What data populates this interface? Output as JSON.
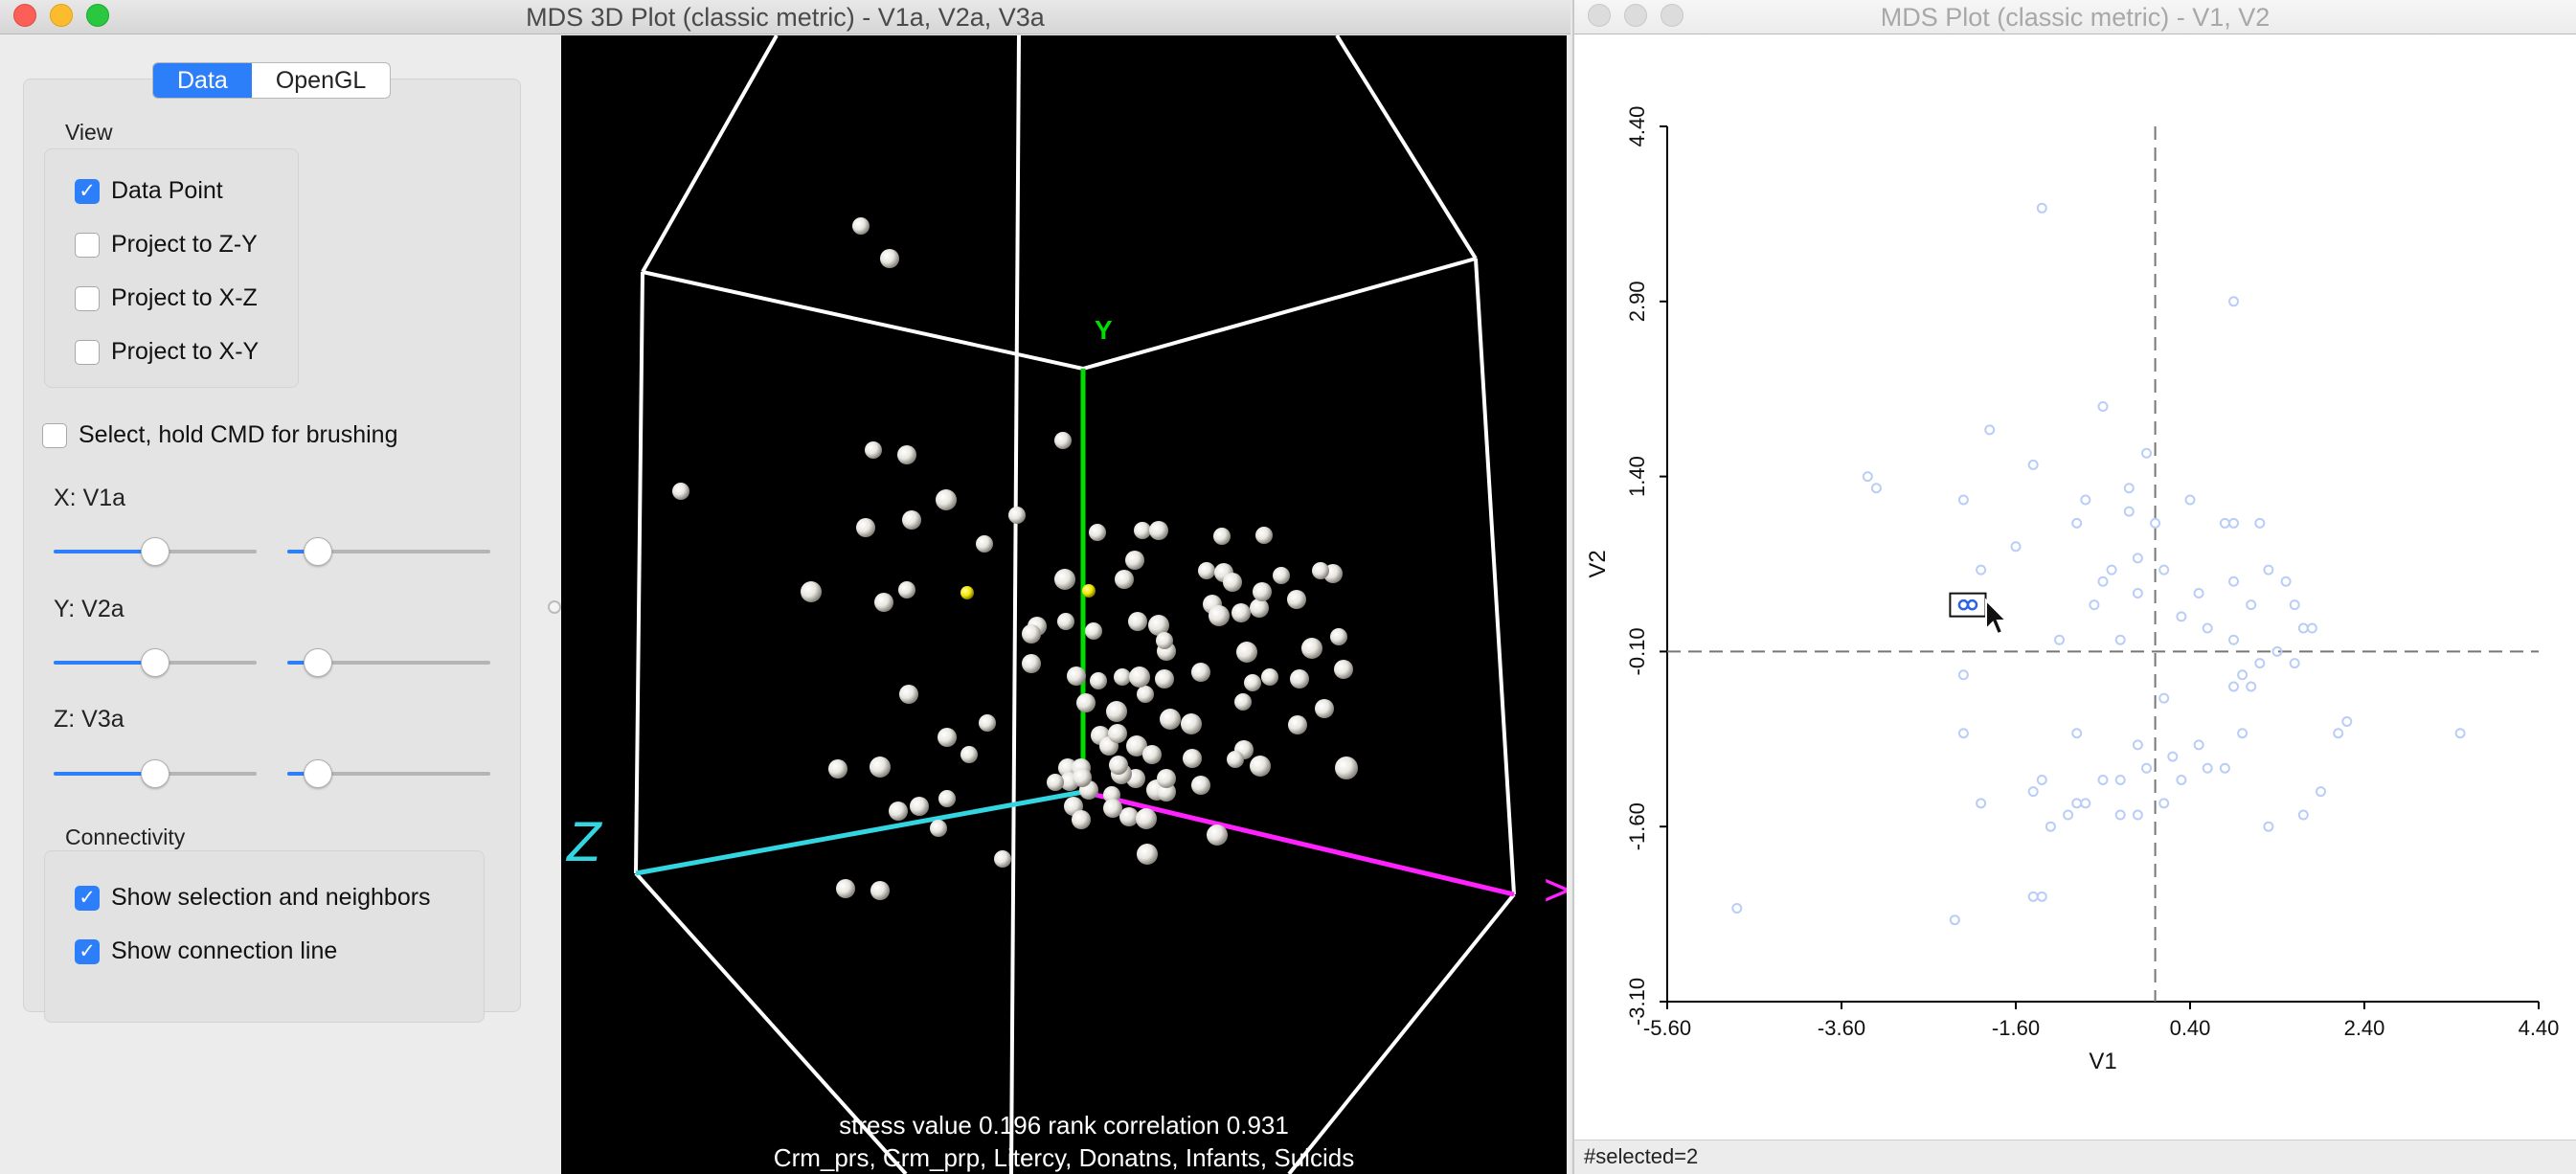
{
  "left_window": {
    "title": "MDS 3D Plot (classic metric) - V1a, V2a, V3a",
    "tabs": [
      {
        "label": "Data",
        "active": true
      },
      {
        "label": "OpenGL",
        "active": false
      }
    ],
    "view_group": {
      "title": "View",
      "options": [
        {
          "label": "Data Point",
          "checked": true
        },
        {
          "label": "Project to Z-Y",
          "checked": false
        },
        {
          "label": "Project to X-Z",
          "checked": false
        },
        {
          "label": "Project to X-Y",
          "checked": false
        }
      ]
    },
    "select_brushing": {
      "label": "Select, hold CMD for brushing",
      "checked": false
    },
    "axes_sliders": [
      {
        "label": "X: V1a",
        "slider1": 0.5,
        "slider2": 0.15
      },
      {
        "label": "Y: V2a",
        "slider1": 0.5,
        "slider2": 0.15
      },
      {
        "label": "Z: V3a",
        "slider1": 0.5,
        "slider2": 0.15
      }
    ],
    "connectivity_group": {
      "title": "Connectivity",
      "options": [
        {
          "label": "Show selection and neighbors",
          "checked": true
        },
        {
          "label": "Show connection line",
          "checked": true
        }
      ]
    },
    "gl": {
      "axis_labels": {
        "y": "Y",
        "z": "Z",
        "x": ">"
      },
      "colors": {
        "y_axis": "#00dd00",
        "z_axis": "#33d6e0",
        "x_axis": "#ff22ff",
        "point": "#e8e6e0",
        "selected": "#f2e600"
      },
      "stress_line": "stress value 0.196 rank correlation 0.931",
      "variables_line": "Crm_prs, Crm_prp, Litercy, Donatns, Infants, Suicids"
    }
  },
  "right_window": {
    "title": "MDS Plot (classic metric) - V1, V2",
    "status": "#selected=2",
    "chart_data": {
      "type": "scatter",
      "xlabel": "V1",
      "ylabel": "V2",
      "xlim": [
        -5.6,
        4.4
      ],
      "ylim": [
        -3.1,
        4.4
      ],
      "x_ticks": [
        "-5.60",
        "-3.60",
        "-1.60",
        "0.40",
        "2.40",
        "4.40"
      ],
      "y_ticks": [
        "-3.10",
        "-1.60",
        "-0.10",
        "1.40",
        "2.90",
        "4.40"
      ],
      "reference_lines": {
        "x": 0.0,
        "y": -0.1
      },
      "point_color": "#b9cdf6",
      "selected_color": "#2d62e6",
      "points": [
        [
          -1.3,
          3.7
        ],
        [
          0.9,
          2.9
        ],
        [
          -0.6,
          2.0
        ],
        [
          -1.9,
          1.8
        ],
        [
          -0.1,
          1.6
        ],
        [
          -3.2,
          1.3
        ],
        [
          -3.3,
          1.4
        ],
        [
          -1.4,
          1.5
        ],
        [
          -0.3,
          1.3
        ],
        [
          0.4,
          1.2
        ],
        [
          -2.2,
          1.2
        ],
        [
          -0.8,
          1.2
        ],
        [
          -0.9,
          1.0
        ],
        [
          -0.3,
          1.1
        ],
        [
          0.0,
          1.0
        ],
        [
          0.8,
          1.0
        ],
        [
          0.9,
          1.0
        ],
        [
          1.2,
          1.0
        ],
        [
          -1.6,
          0.8
        ],
        [
          -2.0,
          0.6
        ],
        [
          -0.2,
          0.7
        ],
        [
          0.1,
          0.6
        ],
        [
          -0.5,
          0.6
        ],
        [
          -0.6,
          0.5
        ],
        [
          0.9,
          0.5
        ],
        [
          1.3,
          0.6
        ],
        [
          1.5,
          0.5
        ],
        [
          1.1,
          0.3
        ],
        [
          0.5,
          0.4
        ],
        [
          -0.2,
          0.4
        ],
        [
          0.3,
          0.2
        ],
        [
          -0.7,
          0.3
        ],
        [
          1.6,
          0.3
        ],
        [
          1.7,
          0.1
        ],
        [
          0.6,
          0.1
        ],
        [
          1.8,
          0.1
        ],
        [
          0.9,
          0.0
        ],
        [
          -1.1,
          0.0
        ],
        [
          -0.4,
          0.0
        ],
        [
          1.4,
          -0.1
        ],
        [
          1.6,
          -0.2
        ],
        [
          1.2,
          -0.2
        ],
        [
          -2.2,
          -0.3
        ],
        [
          1.0,
          -0.3
        ],
        [
          0.9,
          -0.4
        ],
        [
          1.1,
          -0.4
        ],
        [
          0.1,
          -0.5
        ],
        [
          2.1,
          -0.8
        ],
        [
          2.2,
          -0.7
        ],
        [
          3.5,
          -0.8
        ],
        [
          -2.2,
          -0.8
        ],
        [
          -0.9,
          -0.8
        ],
        [
          1.0,
          -0.8
        ],
        [
          0.5,
          -0.9
        ],
        [
          -0.2,
          -0.9
        ],
        [
          0.2,
          -1.0
        ],
        [
          0.6,
          -1.1
        ],
        [
          -0.6,
          -1.2
        ],
        [
          0.8,
          -1.1
        ],
        [
          -0.1,
          -1.1
        ],
        [
          -0.4,
          -1.2
        ],
        [
          -1.3,
          -1.2
        ],
        [
          0.3,
          -1.2
        ],
        [
          -0.8,
          -1.4
        ],
        [
          -1.4,
          -1.3
        ],
        [
          -2.0,
          -1.4
        ],
        [
          0.1,
          -1.4
        ],
        [
          1.9,
          -1.3
        ],
        [
          1.7,
          -1.5
        ],
        [
          -0.9,
          -1.4
        ],
        [
          -1.0,
          -1.5
        ],
        [
          -0.4,
          -1.5
        ],
        [
          -1.2,
          -1.6
        ],
        [
          -0.2,
          -1.5
        ],
        [
          1.3,
          -1.6
        ],
        [
          -1.4,
          -2.2
        ],
        [
          -1.3,
          -2.2
        ],
        [
          -2.3,
          -2.4
        ],
        [
          -4.8,
          -2.3
        ]
      ],
      "selected_points": [
        [
          -2.1,
          0.3
        ],
        [
          -2.2,
          0.3
        ]
      ]
    }
  }
}
